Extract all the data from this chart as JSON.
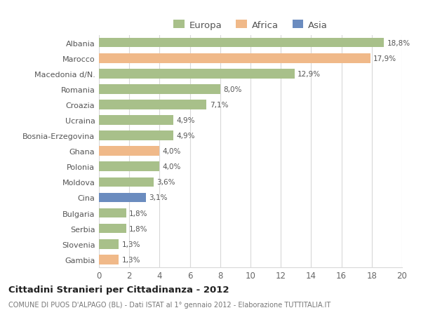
{
  "categories": [
    "Albania",
    "Marocco",
    "Macedonia d/N.",
    "Romania",
    "Croazia",
    "Ucraina",
    "Bosnia-Erzegovina",
    "Ghana",
    "Polonia",
    "Moldova",
    "Cina",
    "Bulgaria",
    "Serbia",
    "Slovenia",
    "Gambia"
  ],
  "values": [
    18.8,
    17.9,
    12.9,
    8.0,
    7.1,
    4.9,
    4.9,
    4.0,
    4.0,
    3.6,
    3.1,
    1.8,
    1.8,
    1.3,
    1.3
  ],
  "labels": [
    "18,8%",
    "17,9%",
    "12,9%",
    "8,0%",
    "7,1%",
    "4,9%",
    "4,9%",
    "4,0%",
    "4,0%",
    "3,6%",
    "3,1%",
    "1,8%",
    "1,8%",
    "1,3%",
    "1,3%"
  ],
  "continents": [
    "Europa",
    "Africa",
    "Europa",
    "Europa",
    "Europa",
    "Europa",
    "Europa",
    "Africa",
    "Europa",
    "Europa",
    "Asia",
    "Europa",
    "Europa",
    "Europa",
    "Africa"
  ],
  "colors": {
    "Europa": "#a8c08a",
    "Africa": "#f0b989",
    "Asia": "#6b8cbf"
  },
  "legend_items": [
    "Europa",
    "Africa",
    "Asia"
  ],
  "xlim": [
    0,
    20
  ],
  "xticks": [
    0,
    2,
    4,
    6,
    8,
    10,
    12,
    14,
    16,
    18,
    20
  ],
  "title": "Cittadini Stranieri per Cittadinanza - 2012",
  "subtitle": "COMUNE DI PUOS D'ALPAGO (BL) - Dati ISTAT al 1° gennaio 2012 - Elaborazione TUTTITALIA.IT",
  "background_color": "#ffffff",
  "grid_color": "#d8d8d8"
}
